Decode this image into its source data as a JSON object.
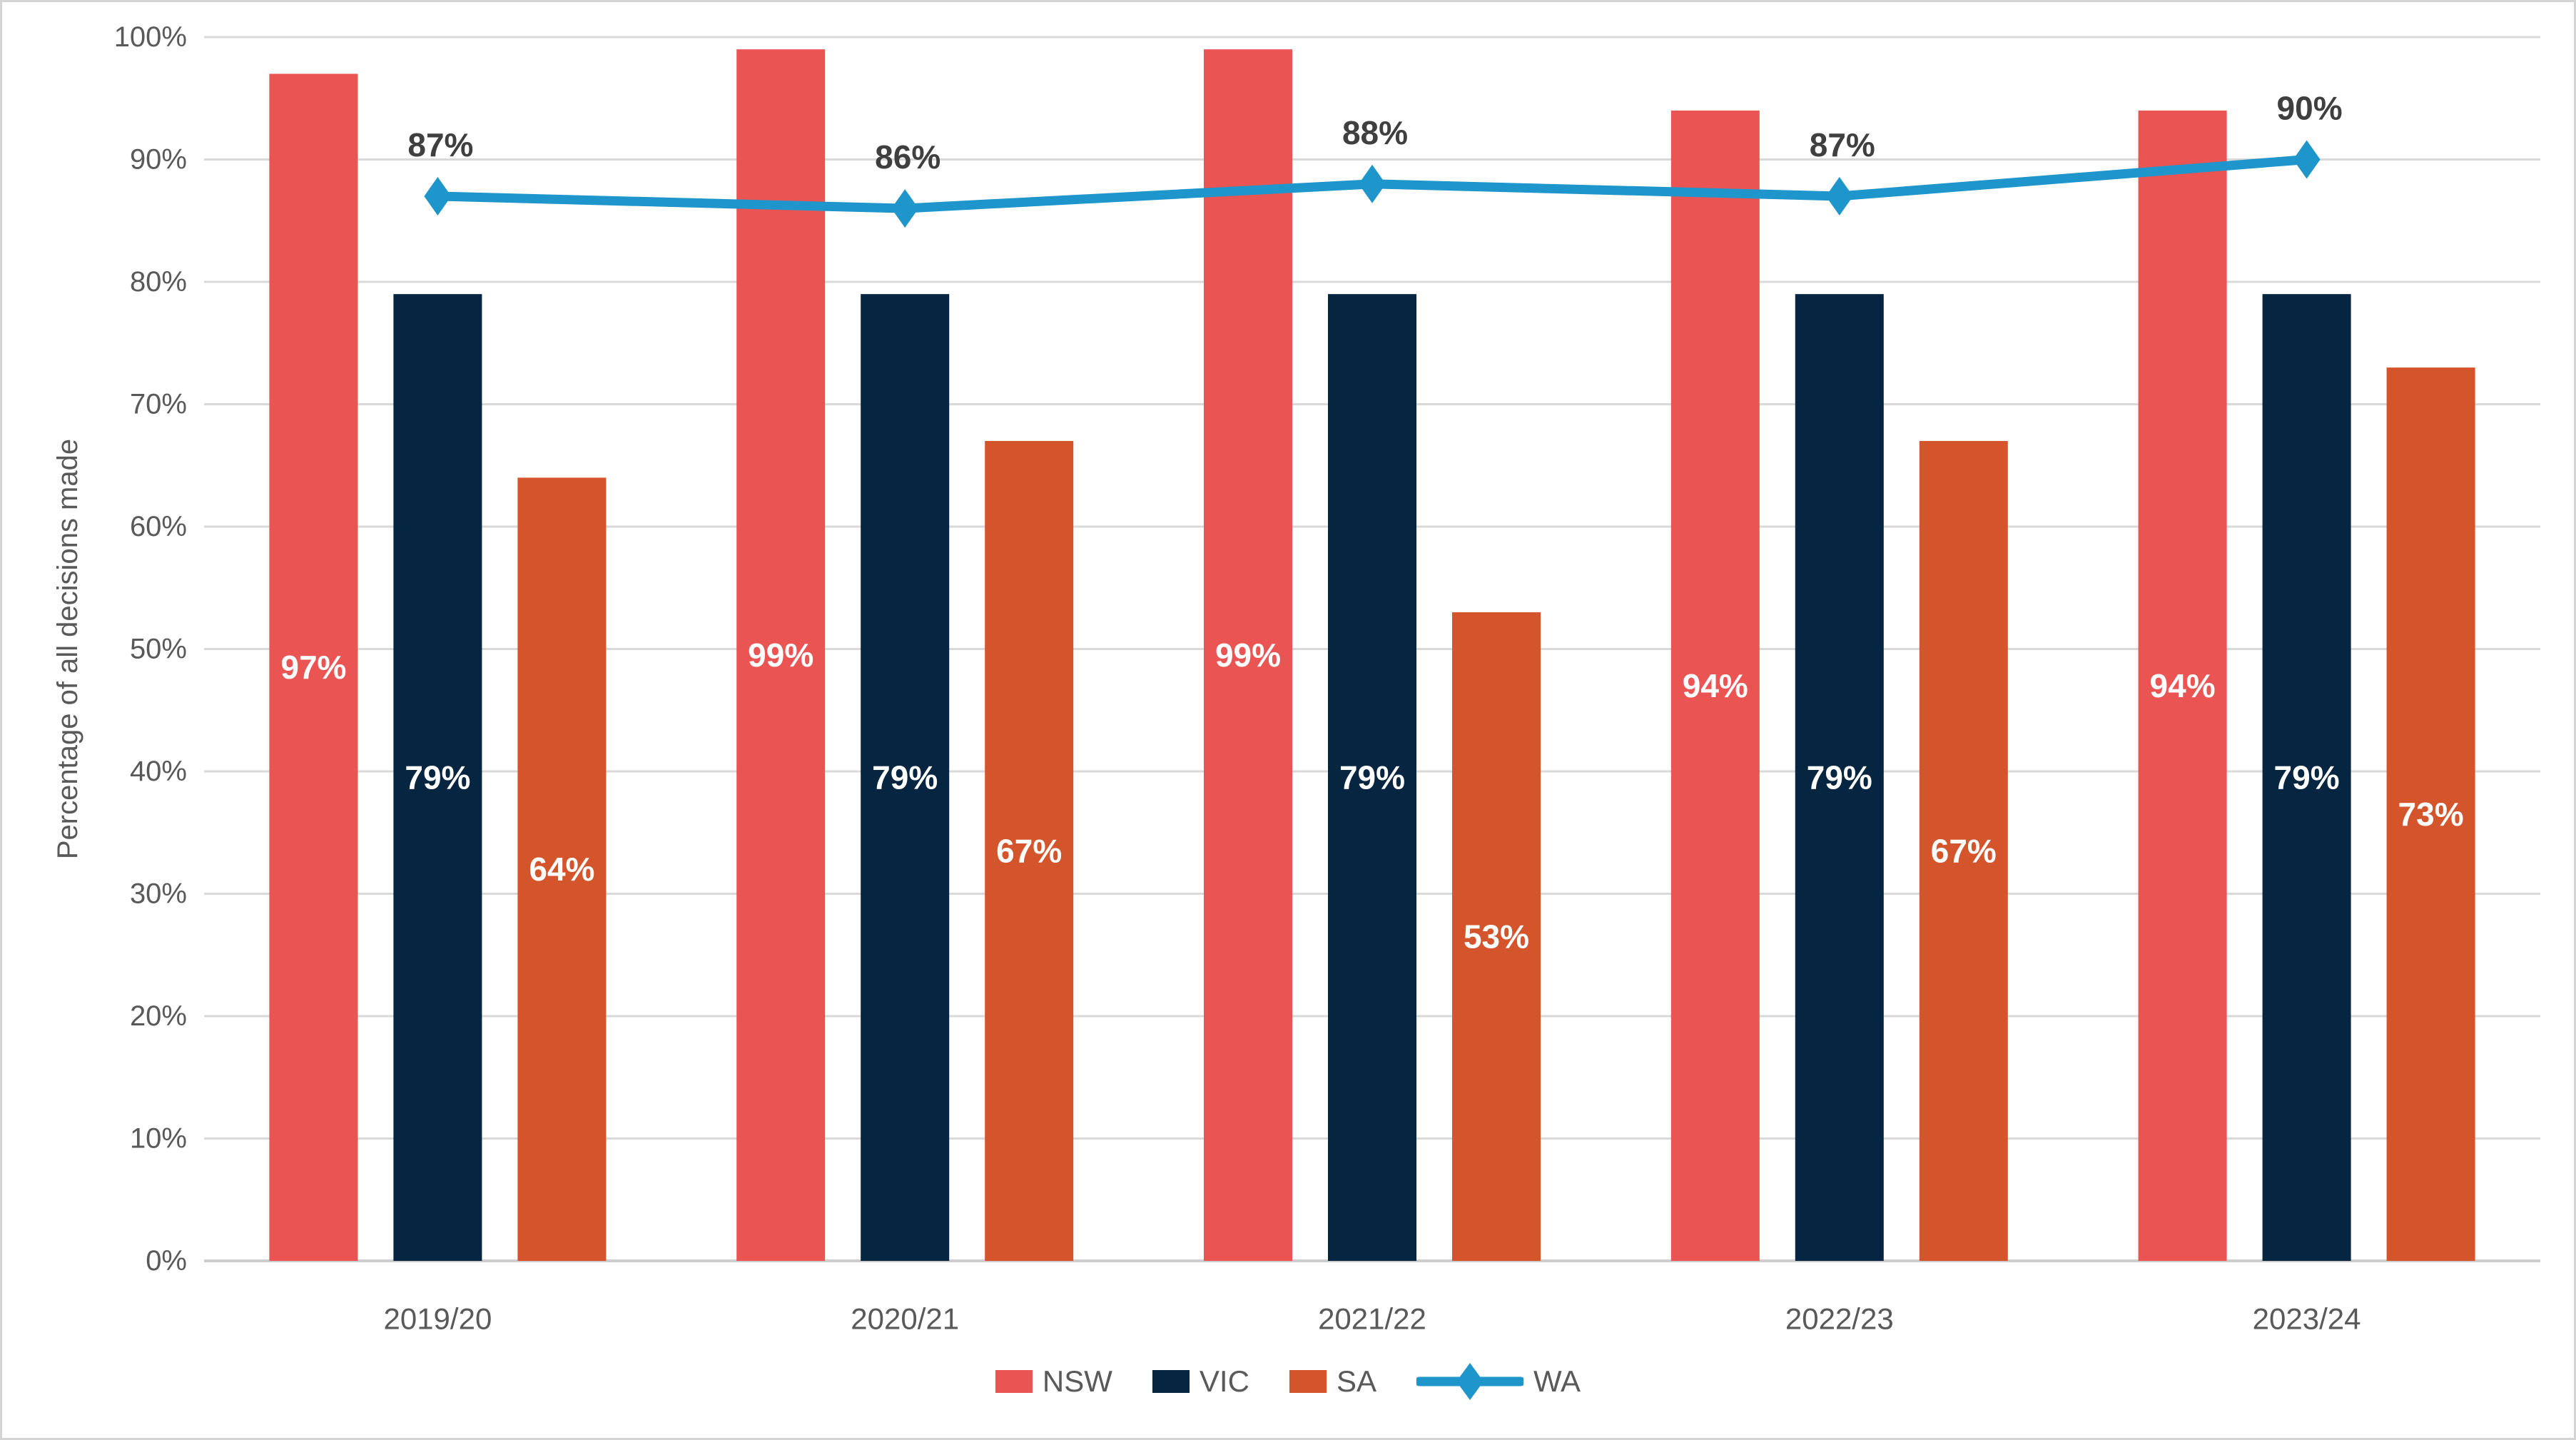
{
  "chart_data": {
    "type": "combo-bar-line",
    "title": "",
    "categories": [
      "2019/20",
      "2020/21",
      "2021/22",
      "2022/23",
      "2023/24"
    ],
    "series": [
      {
        "name": "NSW",
        "type": "bar",
        "color": "#EA5553",
        "values": [
          97,
          99,
          99,
          94,
          94
        ],
        "labels": [
          "97%",
          "99%",
          "99%",
          "94%",
          "94%"
        ],
        "label_color": "#ffffff"
      },
      {
        "name": "VIC",
        "type": "bar",
        "color": "#052540",
        "values": [
          79,
          79,
          79,
          79,
          79
        ],
        "labels": [
          "79%",
          "79%",
          "79%",
          "79%",
          "79%"
        ],
        "label_color": "#ffffff"
      },
      {
        "name": "SA",
        "type": "bar",
        "color": "#D4552B",
        "values": [
          64,
          67,
          53,
          67,
          73
        ],
        "labels": [
          "64%",
          "67%",
          "53%",
          "67%",
          "73%"
        ],
        "label_color": "#ffffff"
      },
      {
        "name": "WA",
        "type": "line",
        "color": "#1E96CB",
        "values": [
          87,
          86,
          88,
          87,
          90
        ],
        "labels": [
          "87%",
          "86%",
          "88%",
          "87%",
          "90%"
        ],
        "label_color": "#3f3f3f",
        "marker": "diamond"
      }
    ],
    "xlabel": "",
    "ylabel": "Percentage of all decisions made",
    "ylim": [
      0,
      100
    ],
    "ytick_step": 10,
    "ytick_labels": [
      "0%",
      "10%",
      "20%",
      "30%",
      "40%",
      "50%",
      "60%",
      "70%",
      "80%",
      "90%",
      "100%"
    ],
    "grid": "horizontal",
    "legend_position": "bottom",
    "data_labels": "inside-center"
  },
  "style": {
    "background": "#ffffff",
    "border_color": "#D4D4D4",
    "gridline_color": "#D9D9D9",
    "axis_line_color": "#CDCDCD",
    "axis_text_color": "#595959",
    "bar_label_color": "#ffffff",
    "line_label_color": "#3f3f3f"
  }
}
